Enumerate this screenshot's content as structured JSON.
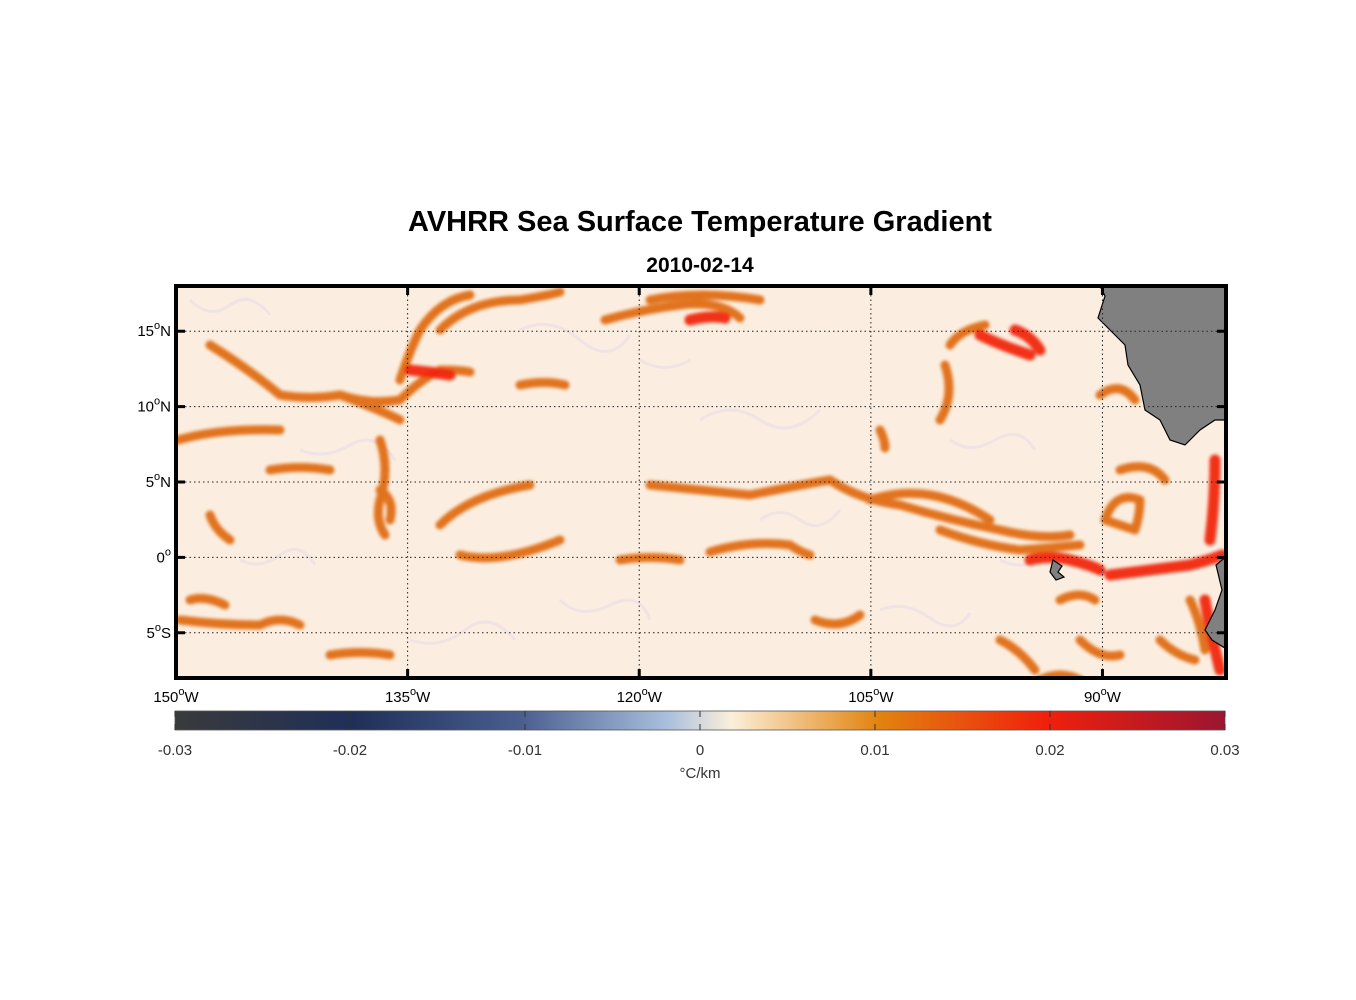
{
  "title": "AVHRR Sea Surface Temperature Gradient",
  "subtitle": "2010-02-14",
  "map": {
    "lon_range": [
      -150,
      -82
    ],
    "lat_range": [
      -8,
      18
    ],
    "lon_ticks": [
      {
        "value": -150,
        "num": "150",
        "hemi": "W"
      },
      {
        "value": -135,
        "num": "135",
        "hemi": "W"
      },
      {
        "value": -120,
        "num": "120",
        "hemi": "W"
      },
      {
        "value": -105,
        "num": "105",
        "hemi": "W"
      },
      {
        "value": -90,
        "num": "90",
        "hemi": "W"
      }
    ],
    "lat_ticks": [
      {
        "value": 15,
        "num": "15",
        "hemi": "N"
      },
      {
        "value": 10,
        "num": "10",
        "hemi": "N"
      },
      {
        "value": 5,
        "num": "5",
        "hemi": "N"
      },
      {
        "value": 0,
        "num": "0",
        "hemi": ""
      },
      {
        "value": -5,
        "num": "5",
        "hemi": "S"
      }
    ],
    "grid": "dotted",
    "land_color": "#808080",
    "ocean_background": "#fbeee0",
    "feature_color": "#e4650a",
    "strong_feature_color": "#f0200c"
  },
  "colorbar": {
    "range": [
      -0.03,
      0.03
    ],
    "ticks": [
      "-0.03",
      "-0.02",
      "-0.01",
      "0",
      "0.01",
      "0.02",
      "0.03"
    ],
    "label": "°C/km",
    "stops": [
      "#3a3a3c",
      "#1f2f58",
      "#4a5f90",
      "#aac0dd",
      "#fbefd9",
      "#e2830f",
      "#f0200c",
      "#9c1531"
    ]
  }
}
